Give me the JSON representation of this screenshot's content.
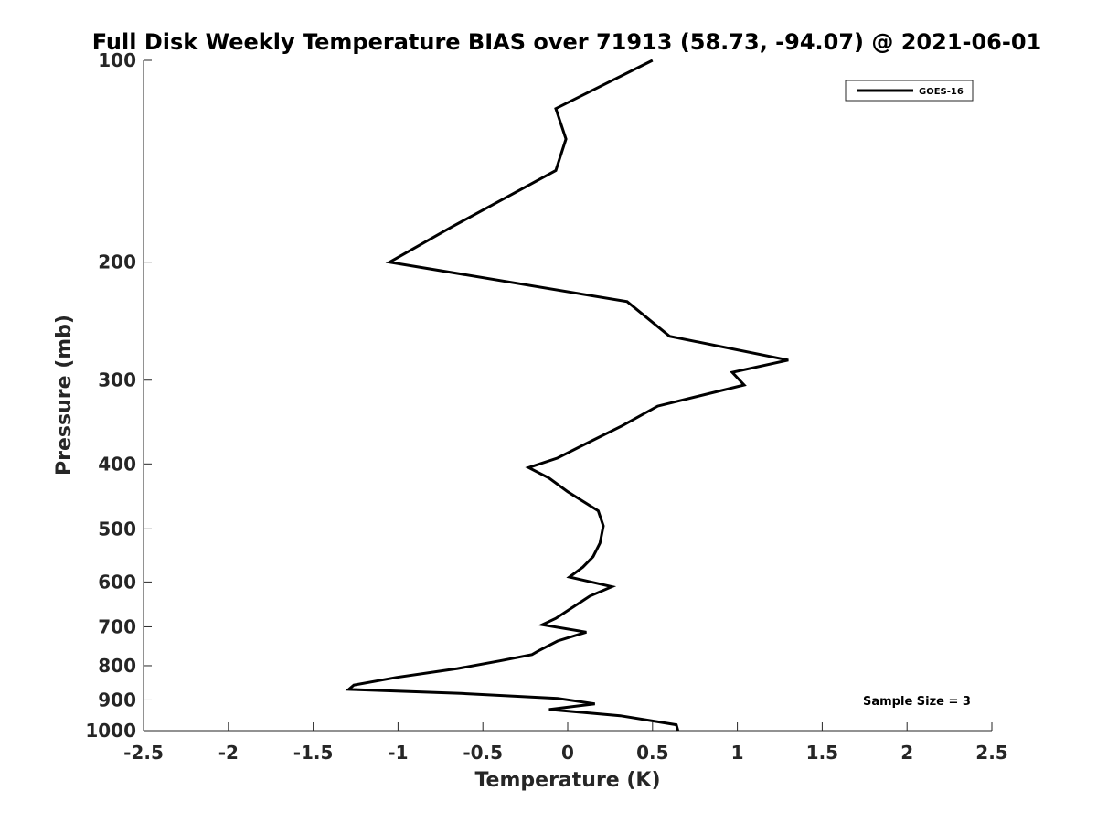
{
  "chart_data": {
    "type": "line",
    "title": "Full Disk Weekly Temperature BIAS over 71913 (58.73, -94.07) @ 2021-06-01",
    "xlabel": "Temperature (K)",
    "ylabel": "Pressure (mb)",
    "xlim": [
      -2.5,
      2.5
    ],
    "ylim": [
      100,
      1000
    ],
    "y_scale": "log",
    "y_reversed": true,
    "grid": false,
    "x_ticks": [
      -2.5,
      -2,
      -1.5,
      -1,
      -0.5,
      0,
      0.5,
      1,
      1.5,
      2,
      2.5
    ],
    "x_tick_labels": [
      "-2.5",
      "-2",
      "-1.5",
      "-1",
      "-0.5",
      "0",
      "0.5",
      "1",
      "1.5",
      "2",
      "2.5"
    ],
    "y_ticks": [
      100,
      200,
      300,
      400,
      500,
      600,
      700,
      800,
      900,
      1000
    ],
    "y_tick_labels": [
      "100",
      "200",
      "300",
      "400",
      "500",
      "600",
      "700",
      "800",
      "900",
      "1000"
    ],
    "legend": {
      "placement": "top-right",
      "entries": [
        "GOES-16"
      ]
    },
    "annotations": [
      {
        "text": "Sample Size = 3",
        "placement": "bottom-right"
      }
    ],
    "series": [
      {
        "name": "GOES-16",
        "color": "#000000",
        "x": [
          0.5,
          -0.07,
          -0.01,
          -0.07,
          -0.68,
          -1.05,
          0.35,
          0.6,
          1.3,
          0.97,
          1.04,
          0.53,
          0.32,
          0.1,
          -0.06,
          -0.23,
          -0.11,
          0,
          0.18,
          0.21,
          0.19,
          0.15,
          0.09,
          0.01,
          0.26,
          0.13,
          0.02,
          -0.07,
          -0.15,
          0.11,
          -0.06,
          -0.17,
          -0.21,
          -0.4,
          -0.65,
          -1.01,
          -1.26,
          -1.29,
          -0.63,
          -0.06,
          0.16,
          -0.11,
          0.31,
          0.64,
          0.65
        ],
        "y": [
          100,
          118,
          131,
          146,
          177,
          200,
          229,
          258,
          280,
          292,
          305,
          328,
          351,
          374,
          392,
          405,
          420,
          440,
          470,
          495,
          525,
          550,
          570,
          590,
          610,
          630,
          657,
          680,
          695,
          713,
          735,
          760,
          770,
          787,
          808,
          833,
          855,
          868,
          880,
          895,
          912,
          930,
          950,
          980,
          1000
        ]
      }
    ]
  }
}
